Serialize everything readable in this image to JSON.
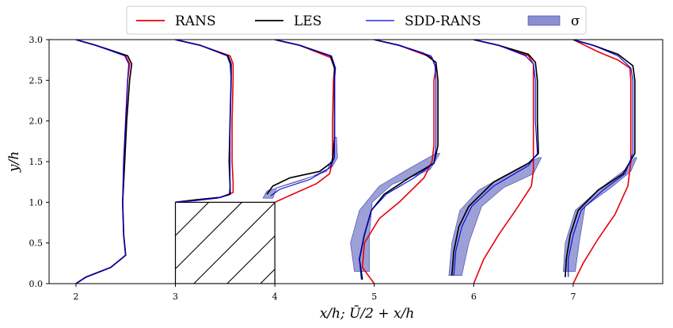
{
  "chart_data": {
    "type": "line",
    "title": "",
    "xlabel": "x/h;   Ū/2 + x/h",
    "ylabel": "y/h",
    "xlim": [
      1.73,
      7.9
    ],
    "ylim": [
      0.0,
      3.0
    ],
    "x_ticks": [
      "2",
      "3",
      "4",
      "5",
      "6",
      "7"
    ],
    "y_ticks": [
      "0.0",
      "0.5",
      "1.0",
      "1.5",
      "2.0",
      "2.5",
      "3.0"
    ],
    "legend": [
      {
        "label": "RANS",
        "kind": "line",
        "color": "#e8000b"
      },
      {
        "label": "LES",
        "kind": "line",
        "color": "#000000"
      },
      {
        "label": "SDD-RANS",
        "kind": "line",
        "color": "#0000e6"
      },
      {
        "label": "σ",
        "kind": "patch",
        "color": "#8b8fcf"
      }
    ],
    "obstacle": {
      "x": [
        3.0,
        4.0
      ],
      "y": [
        0.0,
        1.0
      ],
      "hatch": "diagonal"
    },
    "profiles": [
      {
        "station": 2,
        "RANS": [
          [
            2.0,
            0.0
          ],
          [
            2.1,
            0.08
          ],
          [
            2.35,
            0.2
          ],
          [
            2.5,
            0.35
          ],
          [
            2.48,
            0.6
          ],
          [
            2.47,
            1.0
          ],
          [
            2.48,
            1.5
          ],
          [
            2.5,
            2.0
          ],
          [
            2.52,
            2.5
          ],
          [
            2.54,
            2.7
          ],
          [
            2.5,
            2.8
          ],
          [
            2.2,
            2.93
          ],
          [
            2.0,
            3.0
          ]
        ],
        "LES": [
          [
            2.0,
            0.0
          ],
          [
            2.1,
            0.08
          ],
          [
            2.35,
            0.2
          ],
          [
            2.5,
            0.35
          ],
          [
            2.48,
            0.6
          ],
          [
            2.47,
            1.0
          ],
          [
            2.49,
            1.5
          ],
          [
            2.51,
            2.0
          ],
          [
            2.54,
            2.5
          ],
          [
            2.56,
            2.7
          ],
          [
            2.52,
            2.8
          ],
          [
            2.2,
            2.93
          ],
          [
            2.0,
            3.0
          ]
        ],
        "SDD": [
          [
            2.0,
            0.0
          ],
          [
            2.1,
            0.08
          ],
          [
            2.35,
            0.2
          ],
          [
            2.5,
            0.35
          ],
          [
            2.48,
            0.6
          ],
          [
            2.47,
            1.0
          ],
          [
            2.48,
            1.5
          ],
          [
            2.5,
            2.0
          ],
          [
            2.52,
            2.5
          ],
          [
            2.53,
            2.7
          ],
          [
            2.49,
            2.8
          ],
          [
            2.2,
            2.93
          ],
          [
            2.0,
            3.0
          ]
        ],
        "band": []
      },
      {
        "station": 3,
        "RANS": [
          [
            3.0,
            1.0
          ],
          [
            3.2,
            1.03
          ],
          [
            3.45,
            1.06
          ],
          [
            3.58,
            1.12
          ],
          [
            3.58,
            1.25
          ],
          [
            3.57,
            1.5
          ],
          [
            3.57,
            2.0
          ],
          [
            3.58,
            2.5
          ],
          [
            3.58,
            2.7
          ],
          [
            3.55,
            2.8
          ],
          [
            3.25,
            2.93
          ],
          [
            3.0,
            3.0
          ]
        ],
        "LES": [
          [
            3.0,
            1.0
          ],
          [
            3.2,
            1.03
          ],
          [
            3.45,
            1.06
          ],
          [
            3.55,
            1.1
          ],
          [
            3.55,
            1.2
          ],
          [
            3.54,
            1.5
          ],
          [
            3.55,
            2.0
          ],
          [
            3.56,
            2.5
          ],
          [
            3.56,
            2.7
          ],
          [
            3.53,
            2.8
          ],
          [
            3.25,
            2.93
          ],
          [
            3.0,
            3.0
          ]
        ],
        "SDD": [
          [
            3.0,
            1.0
          ],
          [
            3.2,
            1.02
          ],
          [
            3.42,
            1.05
          ],
          [
            3.54,
            1.09
          ],
          [
            3.55,
            1.2
          ],
          [
            3.55,
            1.5
          ],
          [
            3.55,
            2.0
          ],
          [
            3.56,
            2.5
          ],
          [
            3.55,
            2.7
          ],
          [
            3.52,
            2.8
          ],
          [
            3.25,
            2.93
          ],
          [
            3.0,
            3.0
          ]
        ],
        "band": []
      },
      {
        "station": 4,
        "RANS": [
          [
            4.0,
            1.0
          ],
          [
            4.18,
            1.1
          ],
          [
            4.42,
            1.23
          ],
          [
            4.55,
            1.35
          ],
          [
            4.58,
            1.5
          ],
          [
            4.58,
            1.7
          ],
          [
            4.58,
            2.0
          ],
          [
            4.59,
            2.5
          ],
          [
            4.6,
            2.65
          ],
          [
            4.56,
            2.78
          ],
          [
            4.25,
            2.93
          ],
          [
            4.0,
            3.0
          ]
        ],
        "LES": [
          [
            3.92,
            1.1
          ],
          [
            3.98,
            1.2
          ],
          [
            4.15,
            1.3
          ],
          [
            4.45,
            1.38
          ],
          [
            4.58,
            1.5
          ],
          [
            4.6,
            1.8
          ],
          [
            4.6,
            2.2
          ],
          [
            4.6,
            2.5
          ],
          [
            4.6,
            2.65
          ],
          [
            4.56,
            2.8
          ],
          [
            4.25,
            2.93
          ],
          [
            4.0,
            3.0
          ]
        ],
        "SDD": [
          [
            3.96,
            1.08
          ],
          [
            4.05,
            1.16
          ],
          [
            4.35,
            1.28
          ],
          [
            4.55,
            1.42
          ],
          [
            4.6,
            1.55
          ],
          [
            4.6,
            1.8
          ],
          [
            4.6,
            2.2
          ],
          [
            4.6,
            2.5
          ],
          [
            4.61,
            2.65
          ],
          [
            4.57,
            2.8
          ],
          [
            4.25,
            2.93
          ],
          [
            4.0,
            3.0
          ]
        ],
        "band": [
          [
            3.88,
            1.05
          ],
          [
            3.92,
            1.14
          ],
          [
            4.25,
            1.26
          ],
          [
            4.52,
            1.38
          ],
          [
            4.58,
            1.55
          ],
          [
            4.6,
            1.8
          ],
          [
            4.62,
            1.8
          ],
          [
            4.63,
            1.55
          ],
          [
            4.58,
            1.44
          ],
          [
            4.38,
            1.32
          ],
          [
            4.02,
            1.18
          ],
          [
            3.98,
            1.05
          ]
        ]
      },
      {
        "station": 5,
        "RANS": [
          [
            5.0,
            0.0
          ],
          [
            4.88,
            0.2
          ],
          [
            4.9,
            0.5
          ],
          [
            5.05,
            0.8
          ],
          [
            5.25,
            1.0
          ],
          [
            5.5,
            1.3
          ],
          [
            5.58,
            1.5
          ],
          [
            5.6,
            1.7
          ],
          [
            5.6,
            2.0
          ],
          [
            5.6,
            2.5
          ],
          [
            5.62,
            2.65
          ],
          [
            5.58,
            2.78
          ],
          [
            5.25,
            2.93
          ],
          [
            5.0,
            3.0
          ]
        ],
        "LES": [
          [
            4.88,
            0.05
          ],
          [
            4.85,
            0.3
          ],
          [
            4.9,
            0.6
          ],
          [
            4.97,
            0.9
          ],
          [
            5.1,
            1.1
          ],
          [
            5.35,
            1.3
          ],
          [
            5.6,
            1.48
          ],
          [
            5.64,
            1.7
          ],
          [
            5.64,
            2.0
          ],
          [
            5.64,
            2.5
          ],
          [
            5.62,
            2.72
          ],
          [
            5.5,
            2.83
          ],
          [
            5.25,
            2.93
          ],
          [
            5.0,
            3.0
          ]
        ],
        "SDD": [
          [
            4.87,
            0.05
          ],
          [
            4.85,
            0.3
          ],
          [
            4.9,
            0.6
          ],
          [
            4.97,
            0.9
          ],
          [
            5.12,
            1.1
          ],
          [
            5.4,
            1.3
          ],
          [
            5.6,
            1.48
          ],
          [
            5.62,
            1.7
          ],
          [
            5.62,
            2.0
          ],
          [
            5.62,
            2.5
          ],
          [
            5.61,
            2.68
          ],
          [
            5.57,
            2.8
          ],
          [
            5.25,
            2.93
          ],
          [
            5.0,
            3.0
          ]
        ],
        "band": [
          [
            4.8,
            0.15
          ],
          [
            4.76,
            0.5
          ],
          [
            4.85,
            0.9
          ],
          [
            5.05,
            1.2
          ],
          [
            5.4,
            1.45
          ],
          [
            5.62,
            1.6
          ],
          [
            5.66,
            1.6
          ],
          [
            5.56,
            1.4
          ],
          [
            5.18,
            1.22
          ],
          [
            4.98,
            1.0
          ],
          [
            4.95,
            0.6
          ],
          [
            4.95,
            0.15
          ]
        ]
      },
      {
        "station": 6,
        "RANS": [
          [
            6.0,
            0.0
          ],
          [
            6.1,
            0.3
          ],
          [
            6.25,
            0.6
          ],
          [
            6.42,
            0.9
          ],
          [
            6.58,
            1.2
          ],
          [
            6.6,
            1.4
          ],
          [
            6.6,
            1.7
          ],
          [
            6.6,
            2.0
          ],
          [
            6.6,
            2.5
          ],
          [
            6.6,
            2.7
          ],
          [
            6.55,
            2.8
          ],
          [
            6.25,
            2.93
          ],
          [
            6.0,
            3.0
          ]
        ],
        "LES": [
          [
            5.78,
            0.1
          ],
          [
            5.8,
            0.4
          ],
          [
            5.85,
            0.7
          ],
          [
            5.95,
            0.95
          ],
          [
            6.2,
            1.25
          ],
          [
            6.55,
            1.48
          ],
          [
            6.65,
            1.6
          ],
          [
            6.64,
            2.0
          ],
          [
            6.64,
            2.5
          ],
          [
            6.62,
            2.72
          ],
          [
            6.55,
            2.82
          ],
          [
            6.25,
            2.93
          ],
          [
            6.0,
            3.0
          ]
        ],
        "SDD": [
          [
            5.8,
            0.1
          ],
          [
            5.82,
            0.4
          ],
          [
            5.88,
            0.7
          ],
          [
            5.98,
            0.95
          ],
          [
            6.2,
            1.2
          ],
          [
            6.55,
            1.45
          ],
          [
            6.64,
            1.6
          ],
          [
            6.62,
            2.0
          ],
          [
            6.62,
            2.5
          ],
          [
            6.6,
            2.7
          ],
          [
            6.52,
            2.8
          ],
          [
            6.25,
            2.93
          ],
          [
            6.0,
            3.0
          ]
        ],
        "band": [
          [
            5.75,
            0.1
          ],
          [
            5.78,
            0.5
          ],
          [
            5.86,
            0.9
          ],
          [
            6.05,
            1.15
          ],
          [
            6.45,
            1.42
          ],
          [
            6.65,
            1.55
          ],
          [
            6.68,
            1.55
          ],
          [
            6.6,
            1.35
          ],
          [
            6.3,
            1.18
          ],
          [
            6.08,
            0.95
          ],
          [
            5.95,
            0.5
          ],
          [
            5.88,
            0.1
          ]
        ]
      },
      {
        "station": 7,
        "RANS": [
          [
            7.0,
            0.0
          ],
          [
            7.1,
            0.25
          ],
          [
            7.25,
            0.55
          ],
          [
            7.42,
            0.85
          ],
          [
            7.55,
            1.2
          ],
          [
            7.58,
            1.5
          ],
          [
            7.58,
            2.0
          ],
          [
            7.58,
            2.5
          ],
          [
            7.57,
            2.65
          ],
          [
            7.45,
            2.75
          ],
          [
            7.25,
            2.85
          ],
          [
            7.0,
            3.0
          ]
        ],
        "LES": [
          [
            6.92,
            0.08
          ],
          [
            6.93,
            0.3
          ],
          [
            6.97,
            0.6
          ],
          [
            7.05,
            0.9
          ],
          [
            7.25,
            1.15
          ],
          [
            7.5,
            1.35
          ],
          [
            7.62,
            1.6
          ],
          [
            7.62,
            2.0
          ],
          [
            7.62,
            2.5
          ],
          [
            7.6,
            2.68
          ],
          [
            7.45,
            2.82
          ],
          [
            7.2,
            2.93
          ],
          [
            7.0,
            3.0
          ]
        ],
        "SDD": [
          [
            6.95,
            0.08
          ],
          [
            6.95,
            0.3
          ],
          [
            7.0,
            0.6
          ],
          [
            7.08,
            0.9
          ],
          [
            7.3,
            1.15
          ],
          [
            7.52,
            1.35
          ],
          [
            7.6,
            1.6
          ],
          [
            7.6,
            2.0
          ],
          [
            7.6,
            2.5
          ],
          [
            7.58,
            2.65
          ],
          [
            7.45,
            2.8
          ],
          [
            7.2,
            2.93
          ],
          [
            7.0,
            3.0
          ]
        ],
        "band": [
          [
            6.9,
            0.15
          ],
          [
            6.92,
            0.5
          ],
          [
            7.02,
            0.9
          ],
          [
            7.25,
            1.15
          ],
          [
            7.52,
            1.4
          ],
          [
            7.62,
            1.55
          ],
          [
            7.64,
            1.55
          ],
          [
            7.58,
            1.38
          ],
          [
            7.38,
            1.18
          ],
          [
            7.12,
            0.95
          ],
          [
            7.06,
            0.5
          ],
          [
            7.02,
            0.15
          ]
        ]
      }
    ]
  }
}
